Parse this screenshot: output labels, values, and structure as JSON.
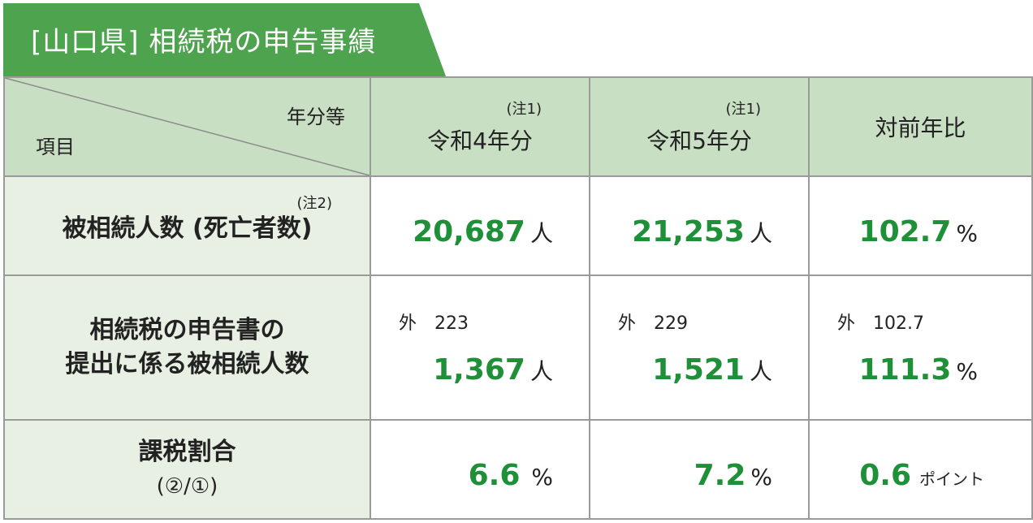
{
  "title": "[山口県] 相続税の申告事績",
  "header": {
    "corner_top": "年分等",
    "corner_bottom": "項目",
    "columns": [
      {
        "note": "(注1)",
        "label": "令和4年分"
      },
      {
        "note": "(注1)",
        "label": "令和5年分"
      },
      {
        "note": "",
        "label": "対前年比"
      }
    ]
  },
  "rows": [
    {
      "note": "(注2)",
      "label": "被相続人数 (死亡者数)",
      "cells": [
        {
          "value": "20,687",
          "unit": "人"
        },
        {
          "value": "21,253",
          "unit": "人"
        },
        {
          "value": "102.7",
          "unit": "%"
        }
      ]
    },
    {
      "label_line1": "相続税の申告書の",
      "label_line2": "提出に係る被相続人数",
      "cells": [
        {
          "outer_label": "外",
          "outer_value": "223",
          "value": "1,367",
          "unit": "人"
        },
        {
          "outer_label": "外",
          "outer_value": "229",
          "value": "1,521",
          "unit": "人"
        },
        {
          "outer_label": "外",
          "outer_value": "102.7",
          "value": "111.3",
          "unit": "%"
        }
      ]
    },
    {
      "label_line1": "課税割合",
      "label_line2": "(②/①)",
      "cells": [
        {
          "value": "6.6",
          "unit": "%"
        },
        {
          "value": "7.2",
          "unit": "%"
        },
        {
          "value": "0.6",
          "unit": "ポイント"
        }
      ]
    }
  ],
  "colors": {
    "accent_green": "#4ea34f",
    "value_green": "#1e9138",
    "header_bg": "#c8dfc4",
    "label_bg": "#e7f0e2"
  }
}
